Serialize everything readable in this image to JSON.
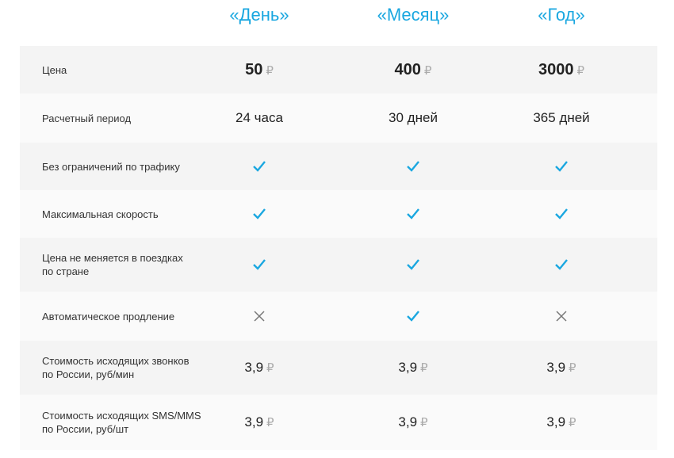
{
  "plans": [
    "«День»",
    "«Месяц»",
    "«Год»"
  ],
  "accent": "#1aa7e0",
  "currency": "₽",
  "rows": [
    {
      "label": "Цена",
      "type": "price",
      "values": [
        "50",
        "400",
        "3000"
      ]
    },
    {
      "label": "Расчетный период",
      "type": "text",
      "values": [
        "24 часа",
        "30 дней",
        "365 дней"
      ]
    },
    {
      "label": "Без ограничений по трафику",
      "type": "bool",
      "values": [
        true,
        true,
        true
      ]
    },
    {
      "label": "Максимальная скорость",
      "type": "bool",
      "values": [
        true,
        true,
        true
      ]
    },
    {
      "label": "Цена не меняется в поездках\nпо стране",
      "type": "bool",
      "values": [
        true,
        true,
        true
      ]
    },
    {
      "label": "Автоматическое продление",
      "type": "bool",
      "values": [
        false,
        true,
        false
      ]
    },
    {
      "label": "Стоимость исходящих звонков\nпо России, руб/мин",
      "type": "money",
      "values": [
        "3,9",
        "3,9",
        "3,9"
      ]
    },
    {
      "label": "Стоимость исходящих SMS/MMS\nпо России, руб/шт",
      "type": "money",
      "values": [
        "3,9",
        "3,9",
        "3,9"
      ]
    }
  ]
}
